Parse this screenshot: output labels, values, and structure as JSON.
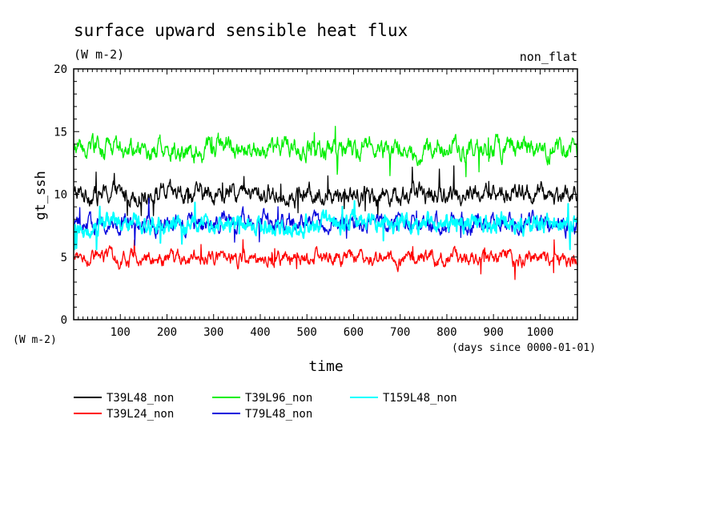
{
  "chart_data": {
    "type": "line",
    "title": "surface upward sensible heat flux",
    "subtitle": "(W m-2)",
    "annotation": "non_flat",
    "xlabel": "time",
    "xunits": "(days since 0000-01-01)",
    "ylabel": "gt_ssh",
    "yunits": "(W m-2)",
    "xlim": [
      0,
      1080
    ],
    "ylim": [
      0,
      20
    ],
    "x_ticks": [
      100,
      200,
      300,
      400,
      500,
      600,
      700,
      800,
      900,
      1000
    ],
    "y_ticks": [
      0,
      5,
      10,
      15,
      20
    ],
    "legend_position": "below",
    "grid": false,
    "series": [
      {
        "name": "T39L48_non",
        "color": "#000000",
        "mean": 10.0,
        "amp": 0.9,
        "min": 8.3,
        "max": 12.5
      },
      {
        "name": "T39L24_non",
        "color": "#ff0000",
        "mean": 4.9,
        "amp": 0.7,
        "min": 2.9,
        "max": 6.4
      },
      {
        "name": "T39L96_non",
        "color": "#00ee00",
        "mean": 13.6,
        "amp": 1.0,
        "min": 11.4,
        "max": 16.1
      },
      {
        "name": "T79L48_non",
        "color": "#0000dd",
        "mean": 7.7,
        "amp": 0.9,
        "min": 5.7,
        "max": 9.7
      },
      {
        "name": "T159L48_non",
        "color": "#00ffff",
        "mean": 7.6,
        "amp": 0.9,
        "min": 5.6,
        "max": 9.6
      }
    ]
  }
}
